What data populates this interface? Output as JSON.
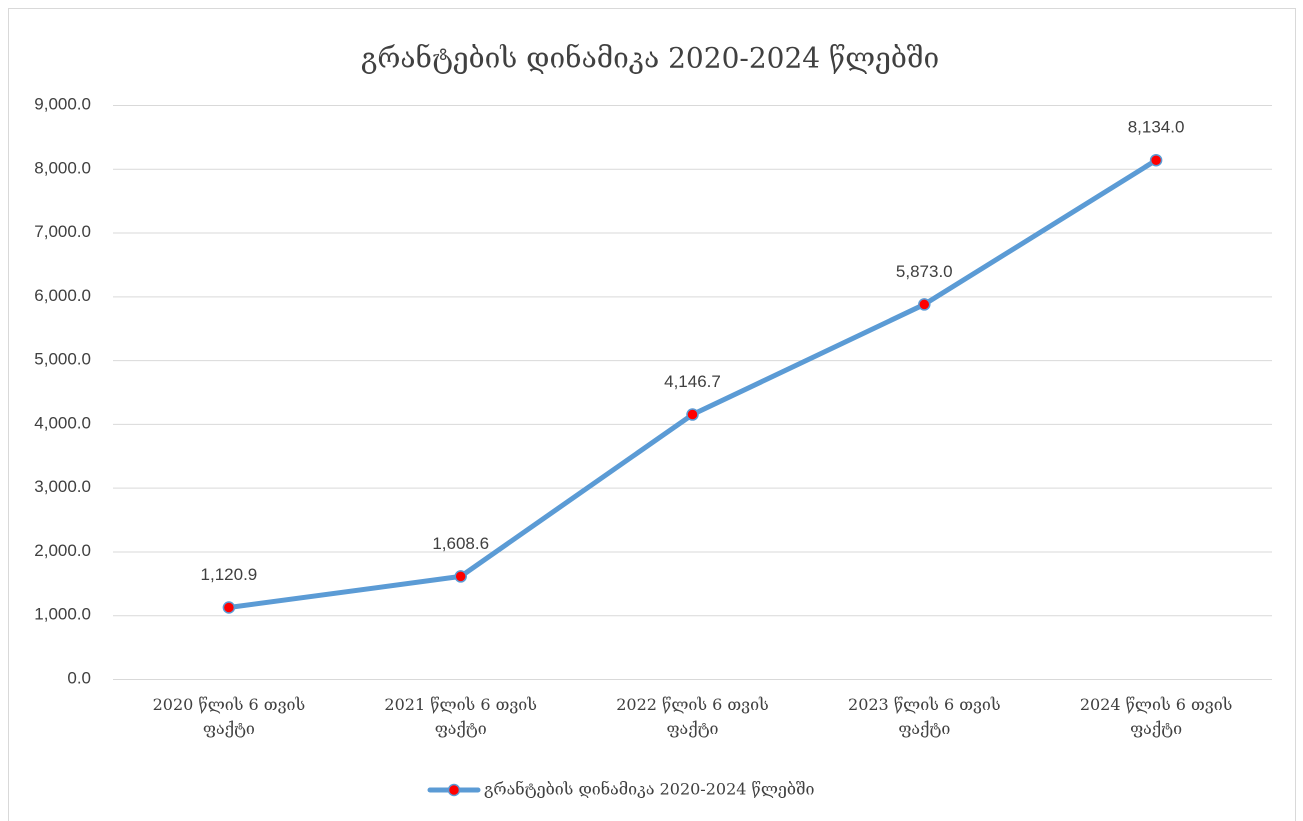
{
  "chart_data": {
    "type": "line",
    "title": "გრანტების დინამიკა 2020-2024 წლებში",
    "categories": [
      "2020 წლის 6 თვის ფაქტი",
      "2021 წლის 6 თვის ფაქტი",
      "2022 წლის 6  თვის ფაქტი",
      "2023 წლის 6 თვის ფაქტი",
      "2024 წლის 6 თვის ფაქტი"
    ],
    "series": [
      {
        "name": "გრანტების დინამიკა 2020-2024 წლებში",
        "color": "#5b9bd5",
        "marker_color": "#ff0000",
        "values": [
          1120.9,
          1608.6,
          4146.7,
          5873.0,
          8134.0
        ],
        "value_labels": [
          "1,120.9",
          "1,608.6",
          "4,146.7",
          "5,873.0",
          "8,134.0"
        ]
      }
    ],
    "ylim": [
      0,
      9000
    ],
    "yticks": [
      {
        "value": 0,
        "label": "0.0"
      },
      {
        "value": 1000,
        "label": "1,000.0"
      },
      {
        "value": 2000,
        "label": "2,000.0"
      },
      {
        "value": 3000,
        "label": "3,000.0"
      },
      {
        "value": 4000,
        "label": "4,000.0"
      },
      {
        "value": 5000,
        "label": "5,000.0"
      },
      {
        "value": 6000,
        "label": "6,000.0"
      },
      {
        "value": 7000,
        "label": "7,000.0"
      },
      {
        "value": 8000,
        "label": "8,000.0"
      },
      {
        "value": 9000,
        "label": "9,000.0"
      }
    ],
    "grid": true,
    "legend": "bottom"
  }
}
